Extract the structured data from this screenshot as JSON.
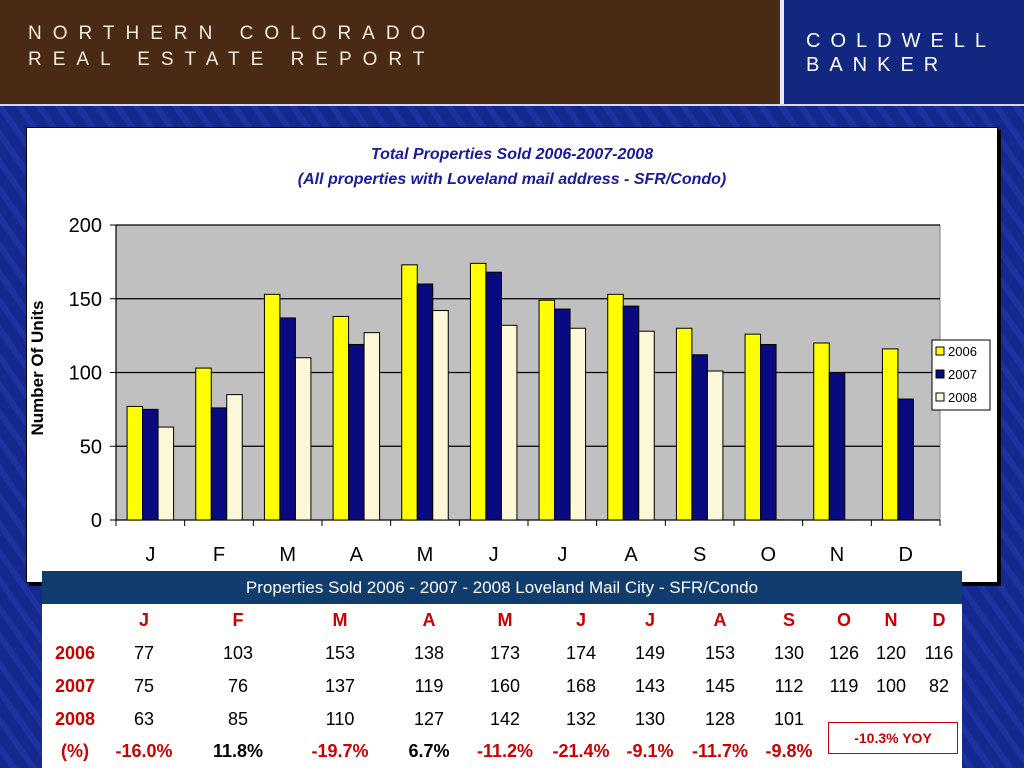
{
  "header": {
    "title_line1": "NORTHERN COLORADO",
    "title_line2": "REAL ESTATE REPORT",
    "brand_line1": "COLDWELL",
    "brand_line2": "BANKER"
  },
  "colors": {
    "series_2006": "#ffff00",
    "series_2007": "#0a0a80",
    "series_2008": "#fcf8d8",
    "plot_bg": "#c0c0c0",
    "title_blue": "#1a1a9a",
    "negative_red": "#cc0000"
  },
  "chart_data": {
    "type": "bar",
    "title_line1": "Total Properties Sold     2006-2007-2008",
    "title_line2": "(All properties with Loveland mail address - SFR/Condo)",
    "ylabel": "Number Of Units",
    "xlabel": "",
    "ylim": [
      0,
      200
    ],
    "yticks": [
      0,
      50,
      100,
      150,
      200
    ],
    "grid": true,
    "legend": "right",
    "categories": [
      "J",
      "F",
      "M",
      "A",
      "M",
      "J",
      "J",
      "A",
      "S",
      "O",
      "N",
      "D"
    ],
    "series": [
      {
        "name": "2006",
        "values": [
          77,
          103,
          153,
          138,
          173,
          174,
          149,
          153,
          130,
          126,
          120,
          116
        ]
      },
      {
        "name": "2007",
        "values": [
          75,
          76,
          137,
          119,
          160,
          168,
          143,
          145,
          112,
          119,
          100,
          82
        ]
      },
      {
        "name": "2008",
        "values": [
          63,
          85,
          110,
          127,
          142,
          132,
          130,
          128,
          101,
          null,
          null,
          null
        ]
      }
    ]
  },
  "table": {
    "title": "Properties Sold    2006 - 2007 - 2008 Loveland Mail City - SFR/Condo",
    "months": [
      "J",
      "F",
      "M",
      "A",
      "M",
      "J",
      "J",
      "A",
      "S",
      "O",
      "N",
      "D"
    ],
    "rows": [
      {
        "label": "2006",
        "values": [
          "77",
          "103",
          "153",
          "138",
          "173",
          "174",
          "149",
          "153",
          "130",
          "126",
          "120",
          "116"
        ]
      },
      {
        "label": "2007",
        "values": [
          "75",
          "76",
          "137",
          "119",
          "160",
          "168",
          "143",
          "145",
          "112",
          "119",
          "100",
          "82"
        ]
      },
      {
        "label": "2008",
        "values": [
          "63",
          "85",
          "110",
          "127",
          "142",
          "132",
          "130",
          "128",
          "101",
          "",
          "",
          ""
        ]
      }
    ],
    "pct_label": "(%)",
    "pct_values": [
      "-16.0%",
      "11.8%",
      "-19.7%",
      "6.7%",
      "-11.2%",
      "-21.4%",
      "-9.1%",
      "-11.7%",
      "-9.8%"
    ],
    "yoy": "-10.3% YOY"
  }
}
